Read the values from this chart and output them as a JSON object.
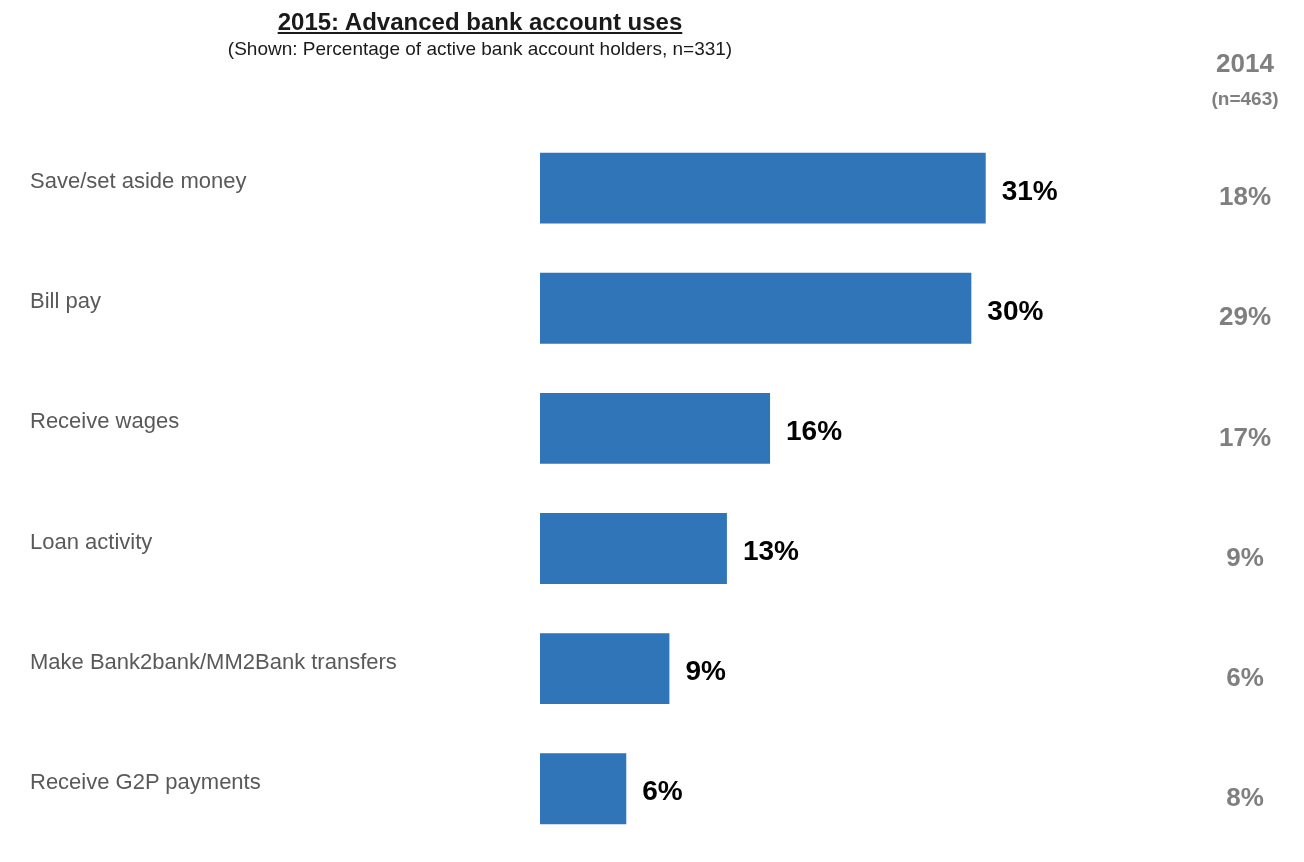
{
  "chart_data": {
    "type": "bar",
    "orientation": "horizontal",
    "title": "2015: Advanced bank account uses",
    "subtitle": "(Shown: Percentage of active bank account holders, n=331)",
    "categories": [
      "Save/set aside money",
      "Bill pay",
      "Receive wages",
      "Loan activity",
      "Make Bank2bank/MM2Bank transfers",
      "Receive G2P payments"
    ],
    "values": [
      31,
      30,
      16,
      13,
      9,
      6
    ],
    "color": "#2f75b8",
    "data_labels": true,
    "value_labels": [
      "31%",
      "30%",
      "16%",
      "13%",
      "9%",
      "6%"
    ],
    "annotations": [
      "2014",
      "(n=463)",
      "18%",
      "29%",
      "17%",
      "9%",
      "6%",
      "8%"
    ],
    "legend": false
  }
}
